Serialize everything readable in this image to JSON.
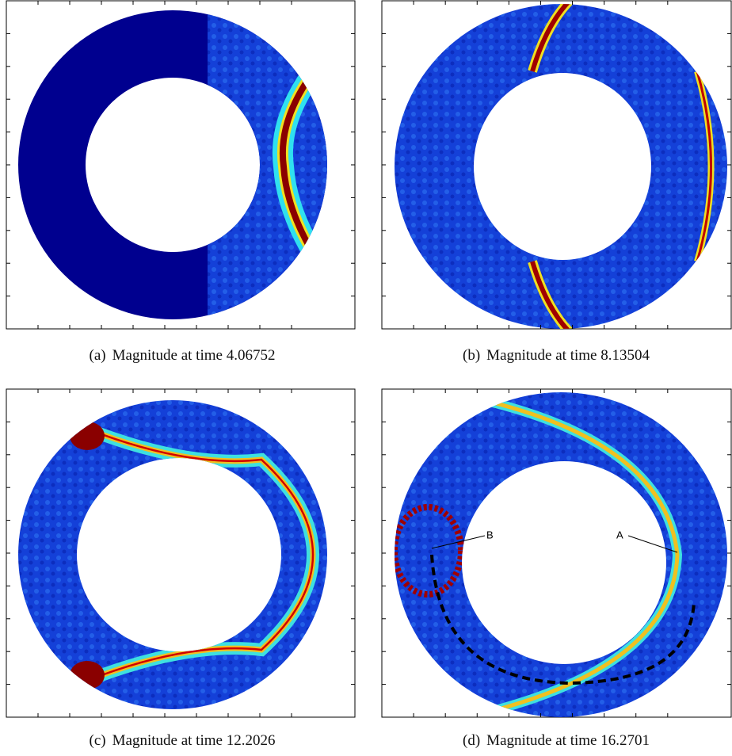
{
  "panels": [
    {
      "label": "(a)",
      "text": "Magnitude at time 4.06752"
    },
    {
      "label": "(b)",
      "text": "Magnitude at time 8.13504"
    },
    {
      "label": "(c)",
      "text": "Magnitude at time 12.2026"
    },
    {
      "label": "(d)",
      "text": "Magnitude at time 16.2701"
    }
  ],
  "annotations": [
    {
      "text": "B"
    },
    {
      "text": "A"
    }
  ]
}
